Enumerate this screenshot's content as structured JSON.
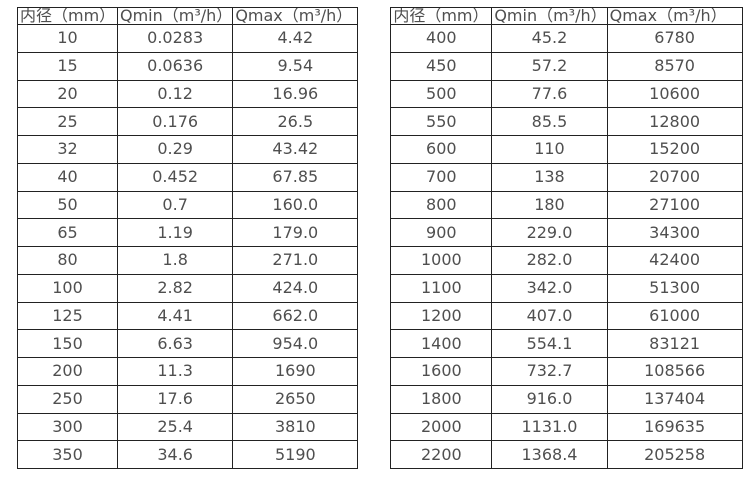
{
  "colors": {
    "background": "#ffffff",
    "border": "#222222",
    "text": "#4f4f4f"
  },
  "tables": [
    {
      "name": "small-diameters",
      "headers": [
        "内径（mm）",
        "Qmin（m³/h）",
        "Qmax（m³/h）"
      ],
      "rows": [
        [
          "10",
          "0.0283",
          "4.42"
        ],
        [
          "15",
          "0.0636",
          "9.54"
        ],
        [
          "20",
          "0.12",
          "16.96"
        ],
        [
          "25",
          "0.176",
          "26.5"
        ],
        [
          "32",
          "0.29",
          "43.42"
        ],
        [
          "40",
          "0.452",
          "67.85"
        ],
        [
          "50",
          "0.7",
          "160.0"
        ],
        [
          "65",
          "1.19",
          "179.0"
        ],
        [
          "80",
          "1.8",
          "271.0"
        ],
        [
          "100",
          "2.82",
          "424.0"
        ],
        [
          "125",
          "4.41",
          "662.0"
        ],
        [
          "150",
          "6.63",
          "954.0"
        ],
        [
          "200",
          "11.3",
          "1690"
        ],
        [
          "250",
          "17.6",
          "2650"
        ],
        [
          "300",
          "25.4",
          "3810"
        ],
        [
          "350",
          "34.6",
          "5190"
        ]
      ]
    },
    {
      "name": "large-diameters",
      "headers": [
        "内径（mm）",
        "Qmin（m³/h）",
        "Qmax（m³/h）"
      ],
      "rows": [
        [
          "400",
          "45.2",
          "6780"
        ],
        [
          "450",
          "57.2",
          "8570"
        ],
        [
          "500",
          "77.6",
          "10600"
        ],
        [
          "550",
          "85.5",
          "12800"
        ],
        [
          "600",
          "110",
          "15200"
        ],
        [
          "700",
          "138",
          "20700"
        ],
        [
          "800",
          "180",
          "27100"
        ],
        [
          "900",
          "229.0",
          "34300"
        ],
        [
          "1000",
          "282.0",
          "42400"
        ],
        [
          "1100",
          "342.0",
          "51300"
        ],
        [
          "1200",
          "407.0",
          "61000"
        ],
        [
          "1400",
          "554.1",
          "83121"
        ],
        [
          "1600",
          "732.7",
          "108566"
        ],
        [
          "1800",
          "916.0",
          "137404"
        ],
        [
          "2000",
          "1131.0",
          "169635"
        ],
        [
          "2200",
          "1368.4",
          "205258"
        ]
      ]
    }
  ]
}
